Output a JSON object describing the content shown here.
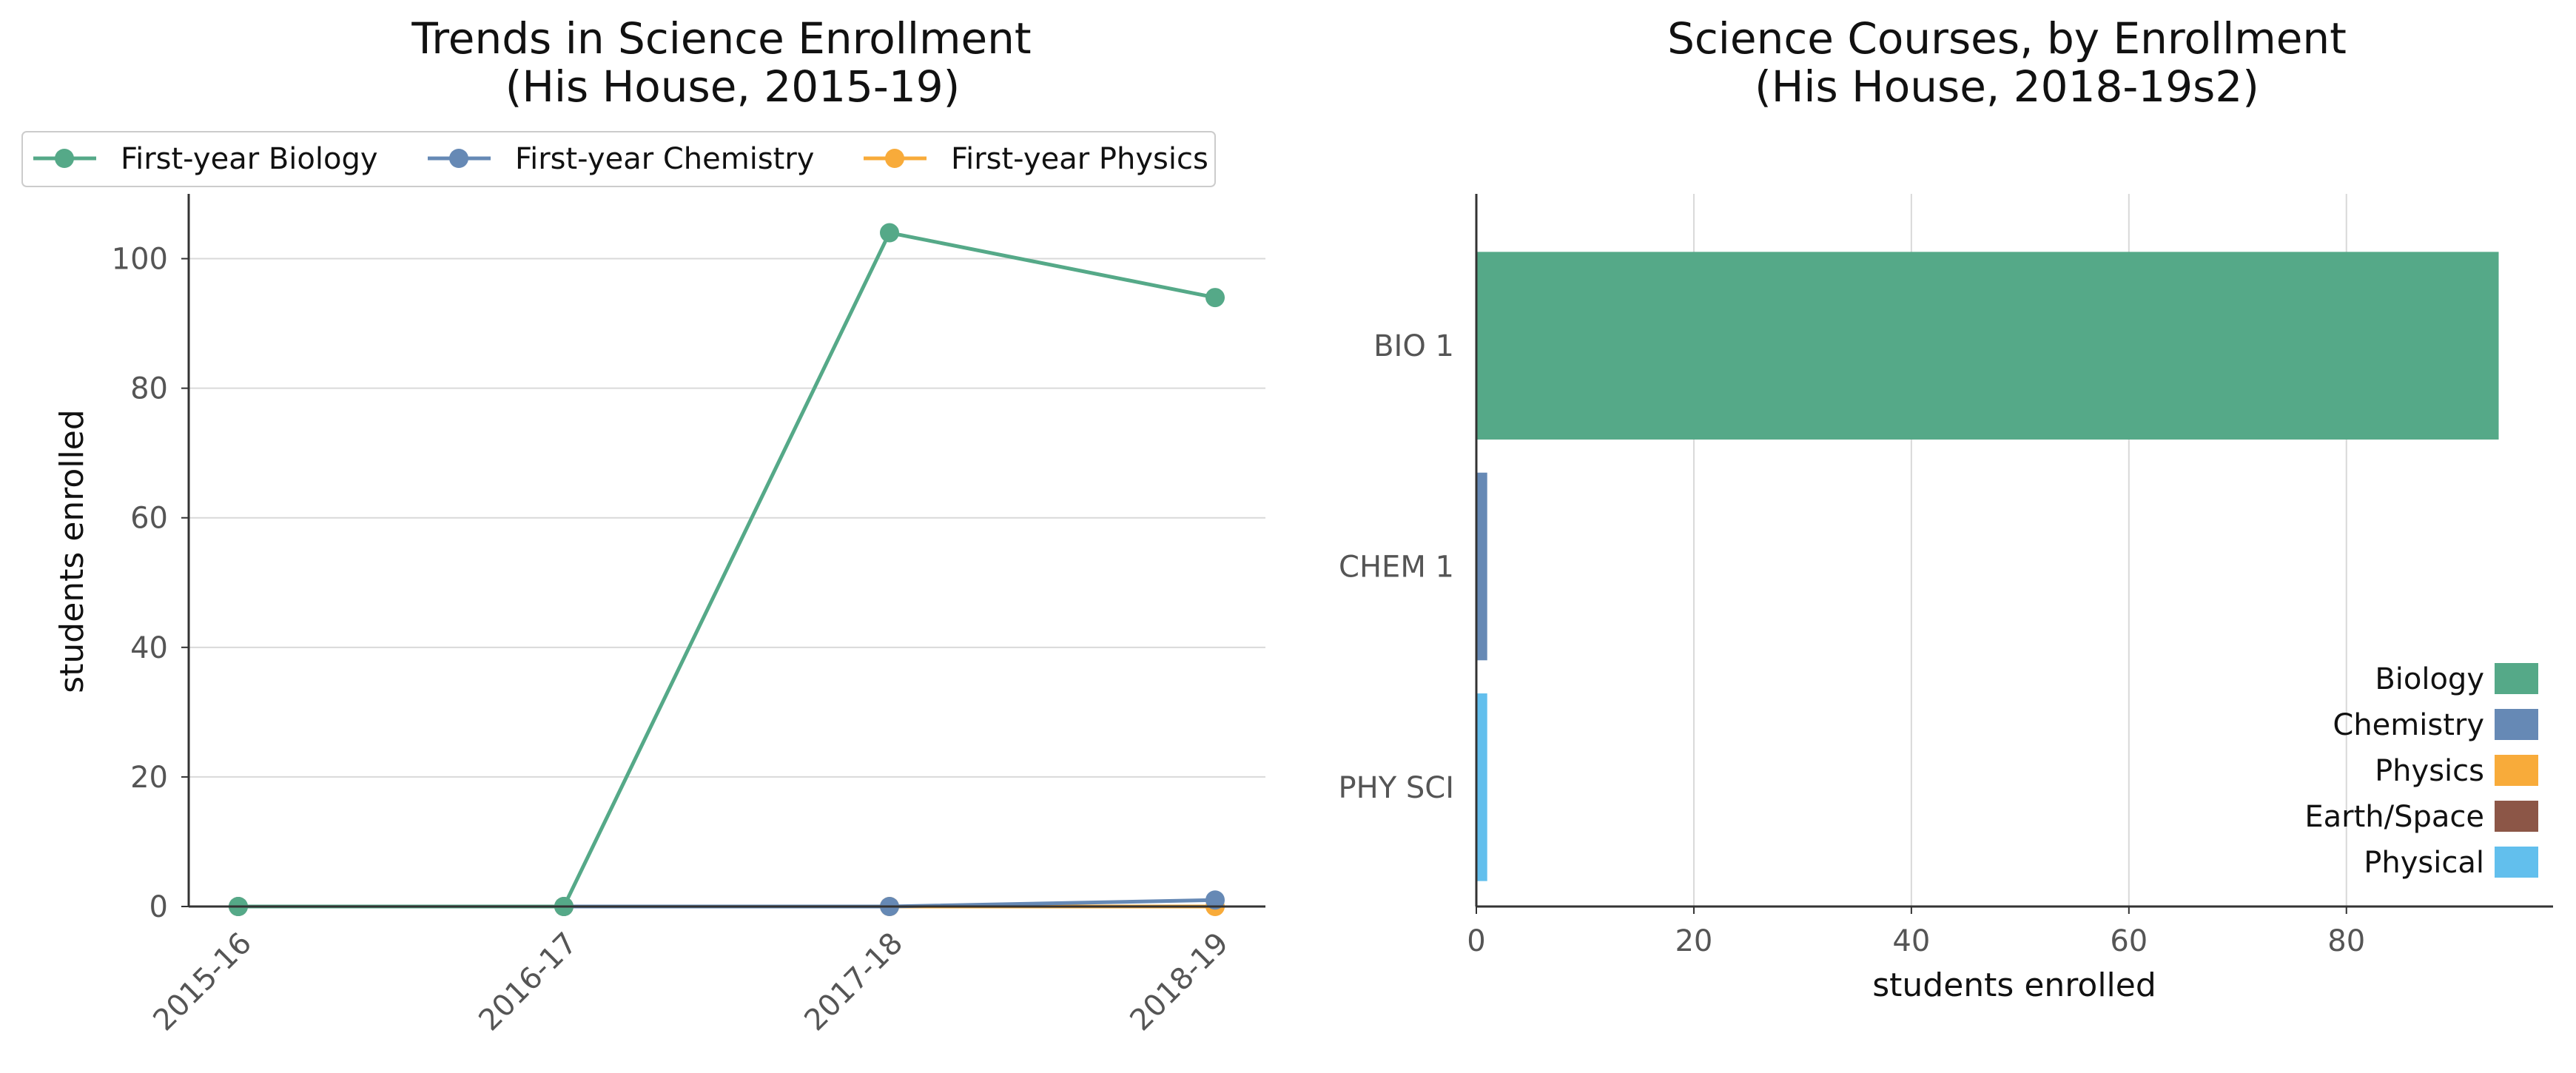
{
  "chart_data": [
    {
      "type": "line",
      "title": "Trends in Science Enrollment",
      "subtitle": "(His House, 2015-19)",
      "xlabel": "",
      "ylabel": "students enrolled",
      "categories": [
        "2015-16",
        "2016-17",
        "2017-18",
        "2018-19"
      ],
      "ylim": [
        0,
        110
      ],
      "yticks": [
        0,
        20,
        40,
        60,
        80,
        100
      ],
      "grid": "horizontal",
      "legend_position": "top",
      "series": [
        {
          "name": "First-year Biology",
          "color": "#55a988",
          "values": [
            0,
            0,
            104,
            94
          ]
        },
        {
          "name": "First-year Chemistry",
          "color": "#6689b5",
          "values": [
            0,
            0,
            0,
            1
          ]
        },
        {
          "name": "First-year Physics",
          "color": "#f8ab3a",
          "values": [
            0,
            0,
            0,
            0
          ]
        }
      ]
    },
    {
      "type": "bar",
      "orientation": "horizontal",
      "title": "Science Courses, by Enrollment",
      "subtitle": "(His House, 2018-19s2)",
      "xlabel": "students enrolled",
      "ylabel": "",
      "xlim": [
        0,
        99
      ],
      "xticks": [
        0,
        20,
        40,
        60,
        80
      ],
      "grid": "vertical",
      "legend_position": "lower-right",
      "categories": [
        "BIO 1",
        "CHEM 1",
        "PHY SCI"
      ],
      "values": [
        94,
        1,
        1
      ],
      "bar_colors": [
        "#55a988",
        "#6689b5",
        "#62bfed"
      ],
      "legend": [
        {
          "name": "Biology",
          "color": "#55a988"
        },
        {
          "name": "Chemistry",
          "color": "#6689b5"
        },
        {
          "name": "Physics",
          "color": "#f8ab3a"
        },
        {
          "name": "Earth/Space",
          "color": "#8c5647"
        },
        {
          "name": "Physical",
          "color": "#62bfed"
        }
      ]
    }
  ]
}
